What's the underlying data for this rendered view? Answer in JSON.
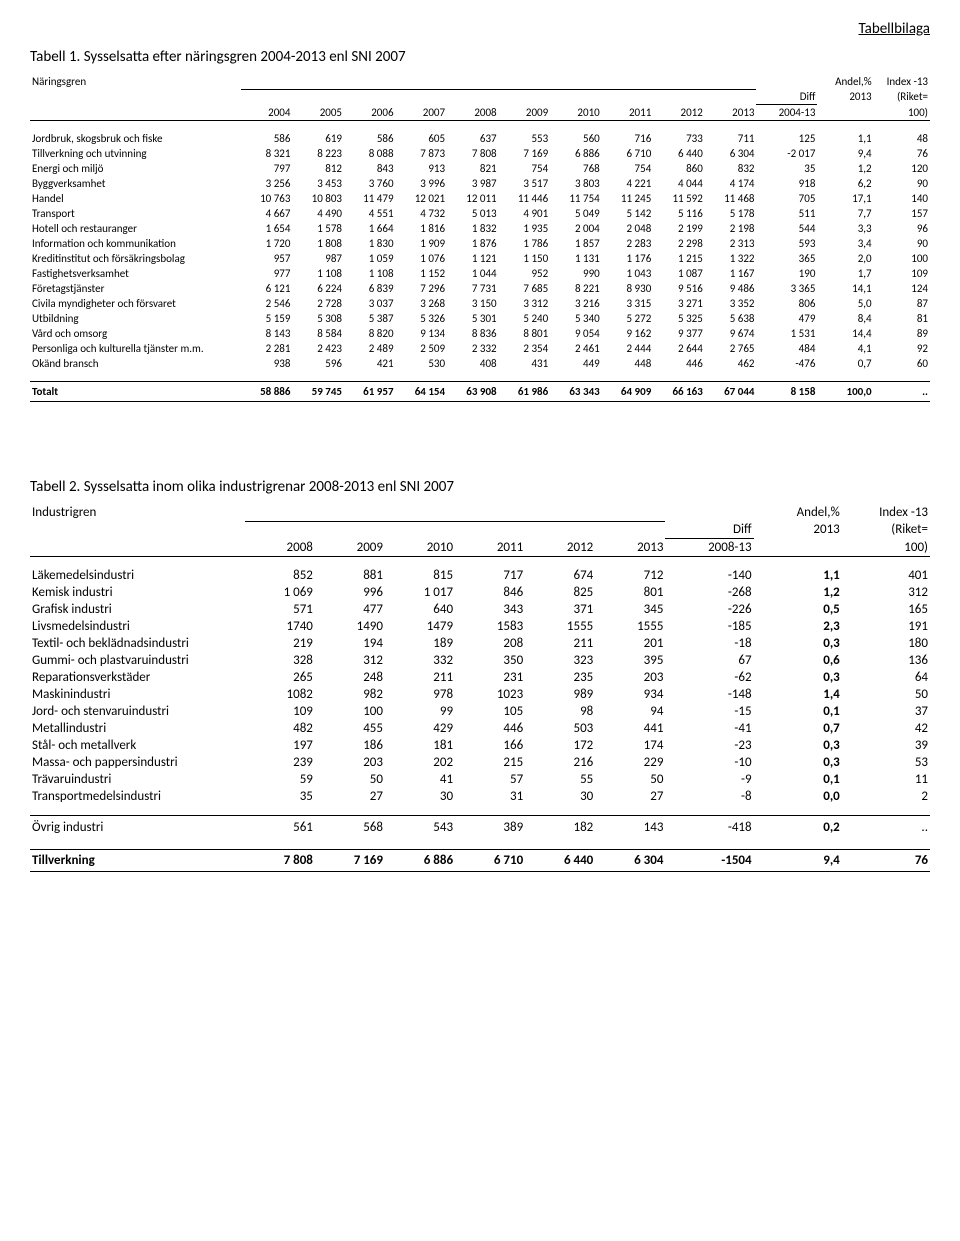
{
  "top_right": "Tabellbilaga",
  "table1": {
    "title": "Tabell 1. Sysselsatta efter näringsgren 2004-2013 enl SNI 2007",
    "corner": "Näringsgren",
    "years": [
      "2004",
      "2005",
      "2006",
      "2007",
      "2008",
      "2009",
      "2010",
      "2011",
      "2012",
      "2013"
    ],
    "diff_head1": "Diff",
    "diff_head2": "2004-13",
    "andel_head1": "Andel,%",
    "andel_head2": "2013",
    "idx_head1": "Index -13",
    "idx_head2": "(Riket=",
    "idx_head3": "100)",
    "rows": [
      {
        "label": "Jordbruk, skogsbruk och fiske",
        "v": [
          "586",
          "619",
          "586",
          "605",
          "637",
          "553",
          "560",
          "716",
          "733",
          "711"
        ],
        "diff": "125",
        "andel": "1,1",
        "idx": "48"
      },
      {
        "label": "Tillverkning och utvinning",
        "v": [
          "8 321",
          "8 223",
          "8 088",
          "7 873",
          "7 808",
          "7 169",
          "6 886",
          "6 710",
          "6 440",
          "6 304"
        ],
        "diff": "-2 017",
        "andel": "9,4",
        "idx": "76"
      },
      {
        "label": "Energi och miljö",
        "v": [
          "797",
          "812",
          "843",
          "913",
          "821",
          "754",
          "768",
          "754",
          "860",
          "832"
        ],
        "diff": "35",
        "andel": "1,2",
        "idx": "120"
      },
      {
        "label": "Byggverksamhet",
        "v": [
          "3 256",
          "3 453",
          "3 760",
          "3 996",
          "3 987",
          "3 517",
          "3 803",
          "4 221",
          "4 044",
          "4 174"
        ],
        "diff": "918",
        "andel": "6,2",
        "idx": "90"
      },
      {
        "label": "Handel",
        "v": [
          "10 763",
          "10 803",
          "11 479",
          "12 021",
          "12 011",
          "11 446",
          "11 754",
          "11 245",
          "11 592",
          "11 468"
        ],
        "diff": "705",
        "andel": "17,1",
        "idx": "140"
      },
      {
        "label": "Transport",
        "v": [
          "4 667",
          "4 490",
          "4 551",
          "4 732",
          "5 013",
          "4 901",
          "5 049",
          "5 142",
          "5 116",
          "5 178"
        ],
        "diff": "511",
        "andel": "7,7",
        "idx": "157"
      },
      {
        "label": "Hotell och restauranger",
        "v": [
          "1 654",
          "1 578",
          "1 664",
          "1 816",
          "1 832",
          "1 935",
          "2 004",
          "2 048",
          "2 199",
          "2 198"
        ],
        "diff": "544",
        "andel": "3,3",
        "idx": "96"
      },
      {
        "label": "Information och kommunikation",
        "v": [
          "1 720",
          "1 808",
          "1 830",
          "1 909",
          "1 876",
          "1 786",
          "1 857",
          "2 283",
          "2 298",
          "2 313"
        ],
        "diff": "593",
        "andel": "3,4",
        "idx": "90"
      },
      {
        "label": "Kreditinstitut och försäkringsbolag",
        "v": [
          "957",
          "987",
          "1 059",
          "1 076",
          "1 121",
          "1 150",
          "1 131",
          "1 176",
          "1 215",
          "1 322"
        ],
        "diff": "365",
        "andel": "2,0",
        "idx": "100"
      },
      {
        "label": "Fastighetsverksamhet",
        "v": [
          "977",
          "1 108",
          "1 108",
          "1 152",
          "1 044",
          "952",
          "990",
          "1 043",
          "1 087",
          "1 167"
        ],
        "diff": "190",
        "andel": "1,7",
        "idx": "109"
      },
      {
        "label": "Företagstjänster",
        "v": [
          "6 121",
          "6 224",
          "6 839",
          "7 296",
          "7 731",
          "7 685",
          "8 221",
          "8 930",
          "9 516",
          "9 486"
        ],
        "diff": "3 365",
        "andel": "14,1",
        "idx": "124"
      },
      {
        "label": "Civila myndigheter och försvaret",
        "v": [
          "2 546",
          "2 728",
          "3 037",
          "3 268",
          "3 150",
          "3 312",
          "3 216",
          "3 315",
          "3 271",
          "3 352"
        ],
        "diff": "806",
        "andel": "5,0",
        "idx": "87"
      },
      {
        "label": "Utbildning",
        "v": [
          "5 159",
          "5 308",
          "5 387",
          "5 326",
          "5 301",
          "5 240",
          "5 340",
          "5 272",
          "5 325",
          "5 638"
        ],
        "diff": "479",
        "andel": "8,4",
        "idx": "81"
      },
      {
        "label": "Vård och omsorg",
        "v": [
          "8 143",
          "8 584",
          "8 820",
          "9 134",
          "8 836",
          "8 801",
          "9 054",
          "9 162",
          "9 377",
          "9 674"
        ],
        "diff": "1 531",
        "andel": "14,4",
        "idx": "89"
      },
      {
        "label": "Personliga och kulturella tjänster m.m.",
        "v": [
          "2 281",
          "2 423",
          "2 489",
          "2 509",
          "2 332",
          "2 354",
          "2 461",
          "2 444",
          "2 644",
          "2 765"
        ],
        "diff": "484",
        "andel": "4,1",
        "idx": "92"
      },
      {
        "label": "Okänd bransch",
        "v": [
          "938",
          "596",
          "421",
          "530",
          "408",
          "431",
          "449",
          "448",
          "446",
          "462"
        ],
        "diff": "-476",
        "andel": "0,7",
        "idx": "60"
      }
    ],
    "total": {
      "label": "Totalt",
      "v": [
        "58 886",
        "59 745",
        "61 957",
        "64 154",
        "63 908",
        "61 986",
        "63 343",
        "64 909",
        "66 163",
        "67 044"
      ],
      "diff": "8 158",
      "andel": "100,0",
      "idx": ".."
    }
  },
  "table2": {
    "title": "Tabell 2. Sysselsatta inom olika industrigrenar 2008-2013 enl SNI 2007",
    "corner": "Industrigren",
    "years": [
      "2008",
      "2009",
      "2010",
      "2011",
      "2012",
      "2013"
    ],
    "diff_head1": "Diff",
    "diff_head2": "2008-13",
    "andel_head1": "Andel,%",
    "andel_head2": "2013",
    "idx_head1": "Index -13",
    "idx_head2": "(Riket=",
    "idx_head3": "100)",
    "rows": [
      {
        "label": "Läkemedelsindustri",
        "v": [
          "852",
          "881",
          "815",
          "717",
          "674",
          "712"
        ],
        "diff": "-140",
        "andel": "1,1",
        "idx": "401"
      },
      {
        "label": "Kemisk industri",
        "v": [
          "1 069",
          "996",
          "1 017",
          "846",
          "825",
          "801"
        ],
        "diff": "-268",
        "andel": "1,2",
        "idx": "312"
      },
      {
        "label": "Grafisk industri",
        "v": [
          "571",
          "477",
          "640",
          "343",
          "371",
          "345"
        ],
        "diff": "-226",
        "andel": "0,5",
        "idx": "165"
      },
      {
        "label": "Livsmedelsindustri",
        "v": [
          "1740",
          "1490",
          "1479",
          "1583",
          "1555",
          "1555"
        ],
        "diff": "-185",
        "andel": "2,3",
        "idx": "191"
      },
      {
        "label": "Textil- och beklädnadsindustri",
        "v": [
          "219",
          "194",
          "189",
          "208",
          "211",
          "201"
        ],
        "diff": "-18",
        "andel": "0,3",
        "idx": "180"
      },
      {
        "label": "Gummi- och plastvaruindustri",
        "v": [
          "328",
          "312",
          "332",
          "350",
          "323",
          "395"
        ],
        "diff": "67",
        "andel": "0,6",
        "idx": "136"
      },
      {
        "label": "Reparationsverkstäder",
        "v": [
          "265",
          "248",
          "211",
          "231",
          "235",
          "203"
        ],
        "diff": "-62",
        "andel": "0,3",
        "idx": "64"
      },
      {
        "label": "Maskinindustri",
        "v": [
          "1082",
          "982",
          "978",
          "1023",
          "989",
          "934"
        ],
        "diff": "-148",
        "andel": "1,4",
        "idx": "50"
      },
      {
        "label": "Jord- och stenvaruindustri",
        "v": [
          "109",
          "100",
          "99",
          "105",
          "98",
          "94"
        ],
        "diff": "-15",
        "andel": "0,1",
        "idx": "37"
      },
      {
        "label": "Metallindustri",
        "v": [
          "482",
          "455",
          "429",
          "446",
          "503",
          "441"
        ],
        "diff": "-41",
        "andel": "0,7",
        "idx": "42"
      },
      {
        "label": "Stål- och metallverk",
        "v": [
          "197",
          "186",
          "181",
          "166",
          "172",
          "174"
        ],
        "diff": "-23",
        "andel": "0,3",
        "idx": "39"
      },
      {
        "label": "Massa- och pappersindustri",
        "v": [
          "239",
          "203",
          "202",
          "215",
          "216",
          "229"
        ],
        "diff": "-10",
        "andel": "0,3",
        "idx": "53"
      },
      {
        "label": "Trävaruindustri",
        "v": [
          "59",
          "50",
          "41",
          "57",
          "55",
          "50"
        ],
        "diff": "-9",
        "andel": "0,1",
        "idx": "11"
      },
      {
        "label": "Transportmedelsindustri",
        "v": [
          "35",
          "27",
          "30",
          "31",
          "30",
          "27"
        ],
        "diff": "-8",
        "andel": "0,0",
        "idx": "2"
      }
    ],
    "ovrig": {
      "label": "Övrig industri",
      "v": [
        "561",
        "568",
        "543",
        "389",
        "182",
        "143"
      ],
      "diff": "-418",
      "andel": "0,2",
      "idx": ".."
    },
    "total": {
      "label": "Tillverkning",
      "v": [
        "7 808",
        "7 169",
        "6 886",
        "6 710",
        "6 440",
        "6 304"
      ],
      "diff": "-1504",
      "andel": "9,4",
      "idx": "76"
    }
  }
}
